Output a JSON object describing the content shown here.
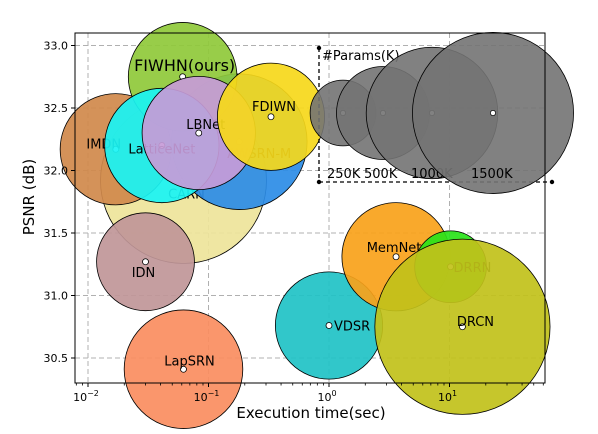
{
  "chart_data": {
    "type": "scatter",
    "title": "",
    "xlabel": "Execution time(sec)",
    "ylabel": "PSNR (dB)",
    "x_scale": "log",
    "xlim": [
      0.0078,
      62
    ],
    "ylim": [
      30.3,
      33.1
    ],
    "x_ticks": [
      {
        "value": 0.01,
        "base": "10",
        "exp": "−2"
      },
      {
        "value": 0.1,
        "base": "10",
        "exp": "−1"
      },
      {
        "value": 1,
        "base": "10",
        "exp": "0"
      },
      {
        "value": 10,
        "base": "10",
        "exp": "1"
      }
    ],
    "y_ticks": [
      30.5,
      31.0,
      31.5,
      32.0,
      32.5,
      33.0
    ],
    "y_tick_labels": [
      "30.5",
      "31.0",
      "31.5",
      "32.0",
      "32.5",
      "33.0"
    ],
    "grid": true,
    "grid_style": "dashed",
    "size_encoding": "#Params(K)",
    "points": [
      {
        "name": "CARN",
        "x": 0.062,
        "y": 31.92,
        "params_k": 1592,
        "color": "#eee49a"
      },
      {
        "name": "AWSRN-M",
        "x": 0.18,
        "y": 32.23,
        "params_k": 1063,
        "color": "#2b8ce6"
      },
      {
        "name": "IMDN",
        "x": 0.017,
        "y": 32.17,
        "params_k": 715,
        "color": "#d0894b"
      },
      {
        "name": "FIWHN(ours)",
        "x": 0.061,
        "y": 32.75,
        "params_k": 682,
        "color": "#8fc93a"
      },
      {
        "name": "LatticeNet",
        "x": 0.041,
        "y": 32.2,
        "params_k": 756,
        "color": "#19f4f4"
      },
      {
        "name": "LBNet",
        "x": 0.083,
        "y": 32.3,
        "params_k": 742,
        "color": "#c79bd8"
      },
      {
        "name": "FDIWN",
        "x": 0.33,
        "y": 32.43,
        "params_k": 664,
        "color": "#f6d81a"
      },
      {
        "name": "IDN",
        "x": 0.03,
        "y": 31.27,
        "params_k": 553,
        "color": "#c09698"
      },
      {
        "name": "LapSRN",
        "x": 0.062,
        "y": 30.41,
        "params_k": 813,
        "color": "#fa8d5f"
      },
      {
        "name": "VDSR",
        "x": 1.0,
        "y": 30.76,
        "params_k": 665,
        "color": "#1fc2c5"
      },
      {
        "name": "MemNet",
        "x": 3.6,
        "y": 31.31,
        "params_k": 677,
        "color": "#f8a21a"
      },
      {
        "name": "DRRN",
        "x": 10.2,
        "y": 31.23,
        "params_k": 297,
        "color": "#29e319"
      },
      {
        "name": "DRCN",
        "x": 12.8,
        "y": 30.75,
        "params_k": 1774,
        "color": "#c1c11a"
      }
    ],
    "legend": {
      "title": "#Params(K)",
      "placement": "top-right",
      "color": "#737373",
      "items": [
        {
          "label": "250K",
          "params_k": 250
        },
        {
          "label": "500K",
          "params_k": 500
        },
        {
          "label": "1000K",
          "params_k": 1000
        },
        {
          "label": "1500K",
          "params_k": 1500
        }
      ]
    }
  }
}
